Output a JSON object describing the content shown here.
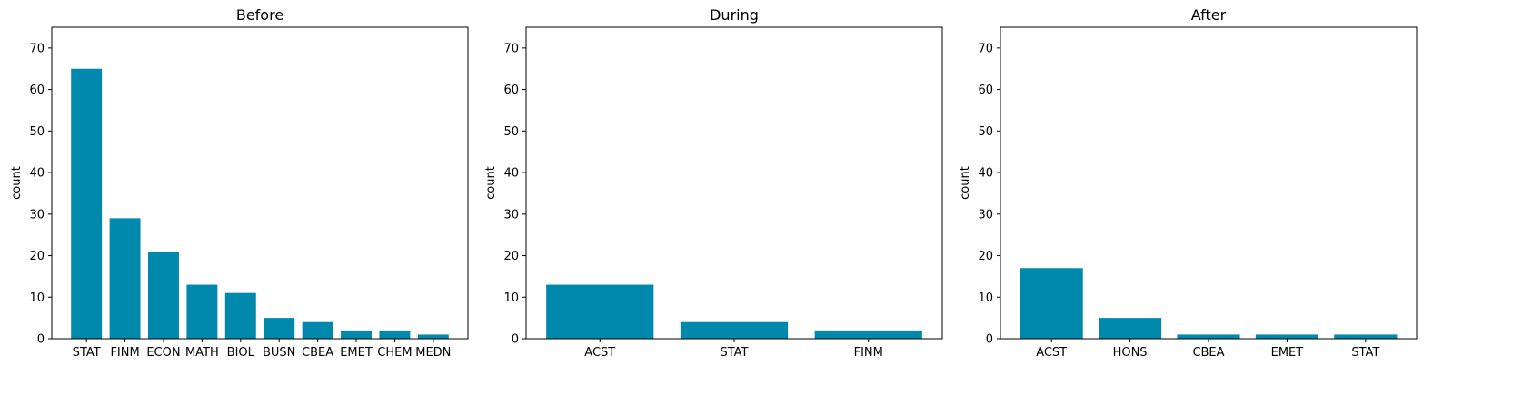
{
  "colors": {
    "bar": "#0088ad",
    "axis": "#000000",
    "background": "#ffffff"
  },
  "chart_data": [
    {
      "type": "bar",
      "title": "Before",
      "xlabel": "",
      "ylabel": "count",
      "ylim": [
        0,
        75
      ],
      "yticks": [
        0,
        10,
        20,
        30,
        40,
        50,
        60,
        70
      ],
      "grid": false,
      "categories": [
        "STAT",
        "FINM",
        "ECON",
        "MATH",
        "BIOL",
        "BUSN",
        "CBEA",
        "EMET",
        "CHEM",
        "MEDN"
      ],
      "values": [
        65,
        29,
        21,
        13,
        11,
        5,
        4,
        2,
        2,
        1
      ]
    },
    {
      "type": "bar",
      "title": "During",
      "xlabel": "",
      "ylabel": "count",
      "ylim": [
        0,
        75
      ],
      "yticks": [
        0,
        10,
        20,
        30,
        40,
        50,
        60,
        70
      ],
      "grid": false,
      "categories": [
        "ACST",
        "STAT",
        "FINM"
      ],
      "values": [
        13,
        4,
        2
      ]
    },
    {
      "type": "bar",
      "title": "After",
      "xlabel": "",
      "ylabel": "count",
      "ylim": [
        0,
        75
      ],
      "yticks": [
        0,
        10,
        20,
        30,
        40,
        50,
        60,
        70
      ],
      "grid": false,
      "categories": [
        "ACST",
        "HONS",
        "CBEA",
        "EMET",
        "STAT"
      ],
      "values": [
        17,
        5,
        1,
        1,
        1
      ]
    }
  ]
}
